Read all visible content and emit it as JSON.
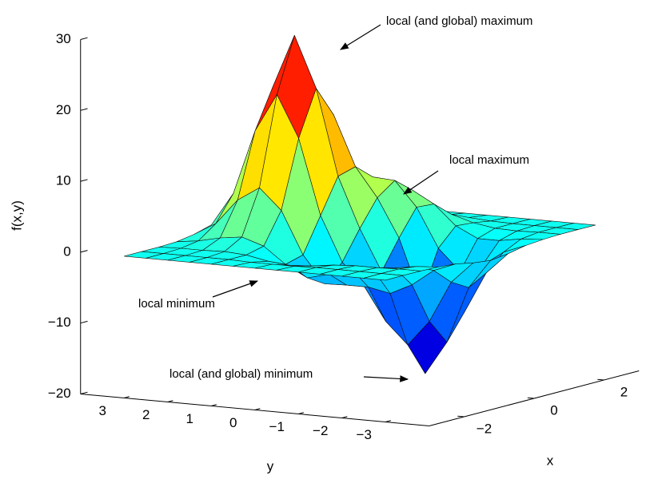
{
  "chart_data": {
    "type": "surface",
    "zlabel": "f(x,y)",
    "xlabel": "x",
    "ylabel": "y",
    "colormap": "jet",
    "xlim": [
      -3,
      3
    ],
    "ylim": [
      -4,
      4
    ],
    "zlim": [
      -20,
      30
    ],
    "xticks": [
      {
        "value": -2,
        "label": "−2"
      },
      0,
      2
    ],
    "yticks": [
      3,
      2,
      1,
      0,
      {
        "value": -1,
        "label": "−1"
      },
      {
        "value": -2,
        "label": "−2"
      },
      {
        "value": -3,
        "label": "−3"
      }
    ],
    "zticks": [
      {
        "value": -20,
        "label": "−20"
      },
      {
        "value": -10,
        "label": "−10"
      },
      0,
      10,
      20,
      30
    ],
    "x": [
      -3,
      -2.5,
      -2,
      -1.5,
      -1,
      -0.5,
      0,
      0.5,
      1,
      1.5,
      2,
      2.5,
      3
    ],
    "y": [
      -3,
      -2.5,
      -2,
      -1.5,
      -1,
      -0.5,
      0,
      0.5,
      1,
      1.5,
      2,
      2.5,
      3
    ],
    "z": [
      [
        0,
        0,
        0,
        -0.1,
        -0.3,
        -0.8,
        -1.1,
        -0.8,
        -0.3,
        -0.1,
        0,
        0,
        0
      ],
      [
        0,
        0,
        0,
        -0.3,
        -1.5,
        -3.8,
        -5.2,
        -3.8,
        -1.5,
        -0.3,
        0,
        0,
        0
      ],
      [
        0,
        0,
        -0.1,
        -0.8,
        -3.8,
        -9.6,
        -13.2,
        -9.6,
        -3.7,
        -0.8,
        -0.1,
        0,
        0
      ],
      [
        0,
        0,
        -0.1,
        -1.2,
        -5.3,
        -13.2,
        -17.9,
        -12.9,
        -4.8,
        -0.8,
        0,
        0,
        0
      ],
      [
        0,
        0,
        -0.3,
        -1.4,
        -4.7,
        -10.2,
        -12.8,
        -8.2,
        -1.8,
        0.7,
        0.5,
        0.1,
        0
      ],
      [
        0,
        -0.1,
        -0.7,
        -2.5,
        -4.7,
        -5.5,
        -4.1,
        0,
        3.7,
        3.5,
        1.4,
        0.3,
        0
      ],
      [
        0,
        -0.1,
        -0.9,
        -3.3,
        -4.8,
        -2.4,
        1.7,
        5.4,
        7.2,
        5.2,
        2,
        0.4,
        0
      ],
      [
        0,
        -0.1,
        -0.6,
        -1.7,
        -1,
        3.9,
        8.8,
        9.5,
        7.4,
        4.2,
        1.5,
        0.3,
        0
      ],
      [
        0,
        0,
        0,
        0.6,
        5,
        14.5,
        20.9,
        16.5,
        7.9,
        2.7,
        0.7,
        0.1,
        0
      ],
      [
        0,
        0,
        0.2,
        1.6,
        7.9,
        20.4,
        28.1,
        20.8,
        8.5,
        2,
        0.3,
        0,
        0
      ],
      [
        0,
        0,
        0.1,
        1.2,
        5.9,
        15,
        20.5,
        15,
        5.9,
        1.3,
        0.2,
        0,
        0
      ],
      [
        0,
        0,
        0.1,
        0.5,
        2.3,
        5.9,
        8,
        5.9,
        2.3,
        0.5,
        0.1,
        0,
        0
      ],
      [
        0,
        0,
        0,
        0.1,
        0.5,
        1.2,
        1.7,
        1.2,
        0.5,
        0.1,
        0,
        0,
        0
      ]
    ],
    "annotations": [
      {
        "text": "local (and global) maximum"
      },
      {
        "text": "local maximum"
      },
      {
        "text": "local minimum"
      },
      {
        "text": "local (and global) minimum"
      }
    ]
  }
}
